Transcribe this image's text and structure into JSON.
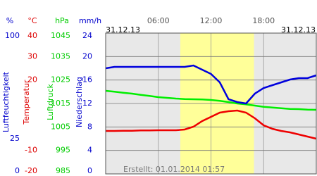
{
  "chart_data": {
    "type": "line",
    "date_left": "31.12.13",
    "date_right": "31.12.13",
    "created": "Erstellt: 01.01.2014 01:57",
    "xlim": [
      0,
      24
    ],
    "xticks": [
      {
        "value": 6,
        "label": "06:00"
      },
      {
        "value": 12,
        "label": "12:00"
      },
      {
        "value": 18,
        "label": "18:00"
      }
    ],
    "daylight": [
      8.5,
      16.9
    ],
    "grid": true,
    "y_axes": [
      {
        "unit": "%",
        "title": "Luftfeuchtigkeit",
        "color": "#0000cc",
        "ylim": [
          0,
          100
        ],
        "yticks": [
          0,
          25,
          100
        ]
      },
      {
        "unit": "°C",
        "title": "Temperatur",
        "color": "#dd0000",
        "ylim": [
          -20,
          40
        ],
        "yticks": [
          -20,
          -10,
          20,
          30,
          40
        ]
      },
      {
        "unit": "hPa",
        "title": "Luftdruck",
        "color": "#00cc00",
        "ylim": [
          985,
          1045
        ],
        "yticks": [
          985,
          995,
          1005,
          1015,
          1025,
          1035,
          1045
        ]
      },
      {
        "unit": "mm/h",
        "title": "Niederschlag",
        "color": "#0000cc",
        "ylim": [
          0,
          24
        ],
        "yticks": [
          0,
          4,
          8,
          12,
          16,
          20,
          24
        ]
      }
    ],
    "x": [
      0,
      1,
      2,
      3,
      4,
      5,
      6,
      7,
      8,
      9,
      10,
      11,
      12,
      13,
      14,
      15,
      16,
      17,
      18,
      19,
      20,
      21,
      22,
      23,
      24
    ],
    "series": [
      {
        "name": "Luftdruck",
        "color": "#00ee00",
        "axis": 2,
        "values": [
          1020.4,
          1020.0,
          1019.6,
          1019.2,
          1018.7,
          1018.2,
          1017.7,
          1017.4,
          1017.1,
          1016.9,
          1016.8,
          1016.7,
          1016.5,
          1016.1,
          1015.6,
          1015,
          1014.6,
          1014.1,
          1013.6,
          1013.3,
          1013,
          1012.7,
          1012.6,
          1012.4,
          1012.3
        ]
      },
      {
        "name": "Temperatur",
        "color": "#ee0000",
        "axis": 1,
        "values": [
          -1.7,
          -1.7,
          -1.6,
          -1.6,
          -1.5,
          -1.5,
          -1.4,
          -1.4,
          -1.4,
          -1.1,
          0.1,
          2.5,
          4.3,
          6.1,
          6.7,
          7,
          6.1,
          3.7,
          0.7,
          -0.8,
          -1.7,
          -2.3,
          -3.2,
          -4.1,
          -5
        ]
      },
      {
        "name": "Luftfeuchtigkeit",
        "color": "#0000dd",
        "axis": 0,
        "values": [
          75,
          76,
          76,
          76,
          76,
          76,
          76,
          76,
          76,
          76,
          77,
          74,
          71,
          65,
          53,
          51,
          50,
          57,
          61,
          63,
          65,
          67,
          68,
          68,
          70
        ]
      }
    ]
  }
}
